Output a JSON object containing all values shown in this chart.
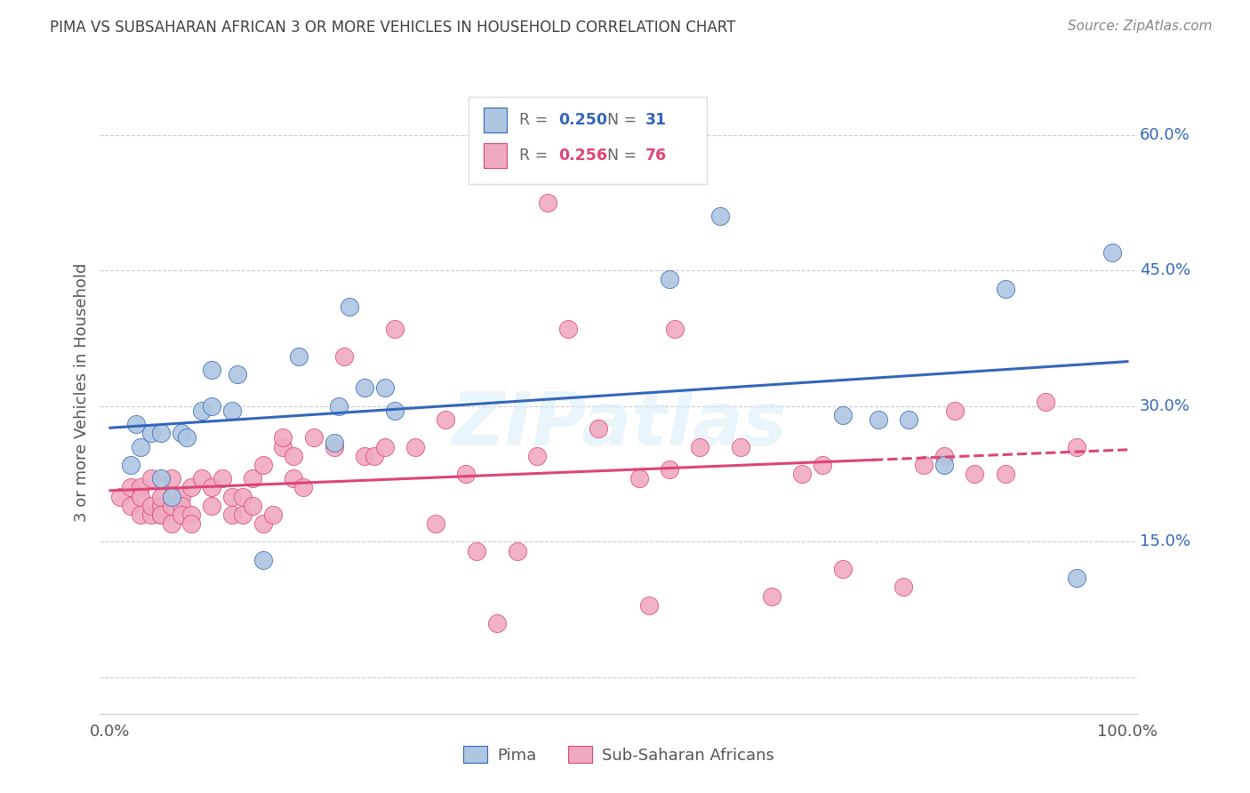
{
  "title": "PIMA VS SUBSAHARAN AFRICAN 3 OR MORE VEHICLES IN HOUSEHOLD CORRELATION CHART",
  "source": "Source: ZipAtlas.com",
  "ylabel": "3 or more Vehicles in Household",
  "watermark": "ZIPatlas",
  "blue_R": 0.25,
  "blue_N": 31,
  "pink_R": 0.256,
  "pink_N": 76,
  "legend_label_blue": "Pima",
  "legend_label_pink": "Sub-Saharan Africans",
  "blue_color": "#aec6e0",
  "pink_color": "#f0aac0",
  "blue_line_color": "#3366bb",
  "pink_line_color": "#dd4477",
  "blue_text_color": "#3366bb",
  "pink_text_color": "#dd4477",
  "background_color": "#ffffff",
  "grid_color": "#cccccc",
  "title_color": "#404040",
  "source_color": "#888888",
  "axis_label_color": "#555555",
  "blue_scatter_x": [
    0.02,
    0.03,
    0.025,
    0.04,
    0.05,
    0.06,
    0.05,
    0.07,
    0.075,
    0.09,
    0.1,
    0.1,
    0.12,
    0.125,
    0.15,
    0.185,
    0.22,
    0.225,
    0.235,
    0.25,
    0.27,
    0.28,
    0.55,
    0.6,
    0.72,
    0.755,
    0.785,
    0.82,
    0.88,
    0.95,
    0.985
  ],
  "blue_scatter_y": [
    0.235,
    0.255,
    0.28,
    0.27,
    0.22,
    0.2,
    0.27,
    0.27,
    0.265,
    0.295,
    0.3,
    0.34,
    0.295,
    0.335,
    0.13,
    0.355,
    0.26,
    0.3,
    0.41,
    0.32,
    0.32,
    0.295,
    0.44,
    0.51,
    0.29,
    0.285,
    0.285,
    0.235,
    0.43,
    0.11,
    0.47
  ],
  "pink_scatter_x": [
    0.01,
    0.02,
    0.02,
    0.03,
    0.03,
    0.03,
    0.04,
    0.04,
    0.04,
    0.05,
    0.05,
    0.05,
    0.05,
    0.06,
    0.06,
    0.06,
    0.07,
    0.07,
    0.07,
    0.08,
    0.08,
    0.08,
    0.09,
    0.1,
    0.1,
    0.11,
    0.12,
    0.12,
    0.13,
    0.13,
    0.14,
    0.14,
    0.15,
    0.15,
    0.16,
    0.17,
    0.17,
    0.18,
    0.18,
    0.19,
    0.2,
    0.22,
    0.23,
    0.25,
    0.26,
    0.27,
    0.28,
    0.3,
    0.32,
    0.33,
    0.35,
    0.36,
    0.38,
    0.4,
    0.42,
    0.43,
    0.45,
    0.48,
    0.52,
    0.53,
    0.55,
    0.555,
    0.58,
    0.62,
    0.65,
    0.68,
    0.7,
    0.72,
    0.78,
    0.8,
    0.82,
    0.83,
    0.85,
    0.88,
    0.92,
    0.95
  ],
  "pink_scatter_y": [
    0.2,
    0.19,
    0.21,
    0.18,
    0.21,
    0.2,
    0.18,
    0.19,
    0.22,
    0.18,
    0.19,
    0.2,
    0.18,
    0.17,
    0.19,
    0.22,
    0.2,
    0.19,
    0.18,
    0.18,
    0.17,
    0.21,
    0.22,
    0.21,
    0.19,
    0.22,
    0.2,
    0.18,
    0.2,
    0.18,
    0.19,
    0.22,
    0.235,
    0.17,
    0.18,
    0.255,
    0.265,
    0.22,
    0.245,
    0.21,
    0.265,
    0.255,
    0.355,
    0.245,
    0.245,
    0.255,
    0.385,
    0.255,
    0.17,
    0.285,
    0.225,
    0.14,
    0.06,
    0.14,
    0.245,
    0.525,
    0.385,
    0.275,
    0.22,
    0.08,
    0.23,
    0.385,
    0.255,
    0.255,
    0.09,
    0.225,
    0.235,
    0.12,
    0.1,
    0.235,
    0.245,
    0.295,
    0.225,
    0.225,
    0.305,
    0.255
  ]
}
